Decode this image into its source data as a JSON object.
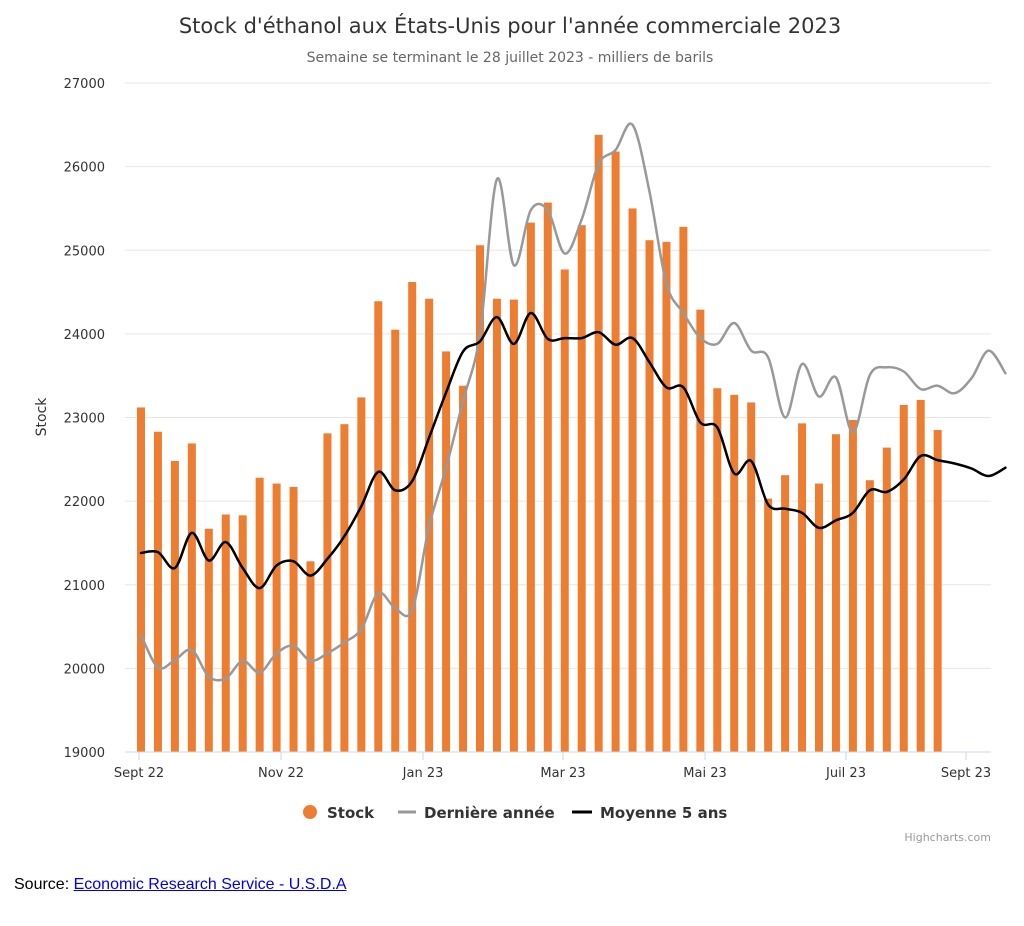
{
  "colors": {
    "stock": "#ed7d31",
    "last_year": "#999999",
    "avg5": "#000000",
    "grid": "#e6e6e6"
  },
  "chart_data": {
    "type": "bar",
    "title": "Stock d'éthanol aux États-Unis pour l'année commerciale 2023",
    "subtitle": "Semaine se terminant le 28 juillet 2023 - milliers de barils",
    "ylabel": "Stock",
    "ylim": [
      19000,
      27000
    ],
    "yticks": [
      19000,
      20000,
      21000,
      22000,
      23000,
      24000,
      25000,
      26000,
      27000
    ],
    "xticks": [
      "Sept 22",
      "Nov 22",
      "Jan 23",
      "Mar 23",
      "Mai 23",
      "Juil 23",
      "Sept 23"
    ],
    "grid": true,
    "legend_position": "bottom-center",
    "series": [
      {
        "name": "Stock",
        "type": "bar",
        "values": [
          23120,
          22830,
          22480,
          22690,
          21670,
          21840,
          21830,
          22280,
          22210,
          22170,
          21280,
          22810,
          22920,
          23240,
          24390,
          24050,
          24620,
          24420,
          23790,
          23380,
          25060,
          24420,
          24410,
          25330,
          25570,
          24770,
          25300,
          26380,
          26180,
          25500,
          25120,
          25100,
          25280,
          24290,
          23350,
          23270,
          23180,
          22030,
          22310,
          22930,
          22210,
          22800,
          22970,
          22250,
          22640,
          23150,
          23210,
          22850
        ]
      },
      {
        "name": "Dernière année",
        "type": "line",
        "values": [
          20400,
          20010,
          20100,
          20220,
          19900,
          19880,
          20090,
          19950,
          20180,
          20270,
          20090,
          20180,
          20310,
          20470,
          20900,
          20720,
          20700,
          21700,
          22400,
          23200,
          24000,
          25850,
          24820,
          25480,
          25480,
          24960,
          25370,
          26030,
          26200,
          26500,
          25700,
          24600,
          24250,
          23950,
          23880,
          24130,
          23800,
          23720,
          23000,
          23640,
          23250,
          23480,
          22820,
          23510,
          23600,
          23550,
          23340,
          23380,
          23290,
          23470,
          23800,
          23530
        ]
      },
      {
        "name": "Moyenne 5 ans",
        "type": "line",
        "values": [
          21380,
          21390,
          21200,
          21620,
          21290,
          21510,
          21200,
          20960,
          21230,
          21280,
          21110,
          21310,
          21580,
          21940,
          22350,
          22130,
          22240,
          22760,
          23300,
          23790,
          23910,
          24200,
          23880,
          24250,
          23940,
          23950,
          23950,
          24020,
          23870,
          23950,
          23660,
          23360,
          23360,
          22940,
          22880,
          22330,
          22480,
          21960,
          21910,
          21860,
          21680,
          21770,
          21860,
          22130,
          22110,
          22260,
          22540,
          22490,
          22450,
          22390,
          22300,
          22400
        ]
      }
    ]
  },
  "legend": {
    "stock": "Stock",
    "last_year": "Dernière année",
    "avg5": "Moyenne 5 ans"
  },
  "credits": "Highcharts.com",
  "source": {
    "prefix": "Source: ",
    "link_text": "Economic Research Service - U.S.D.A"
  }
}
